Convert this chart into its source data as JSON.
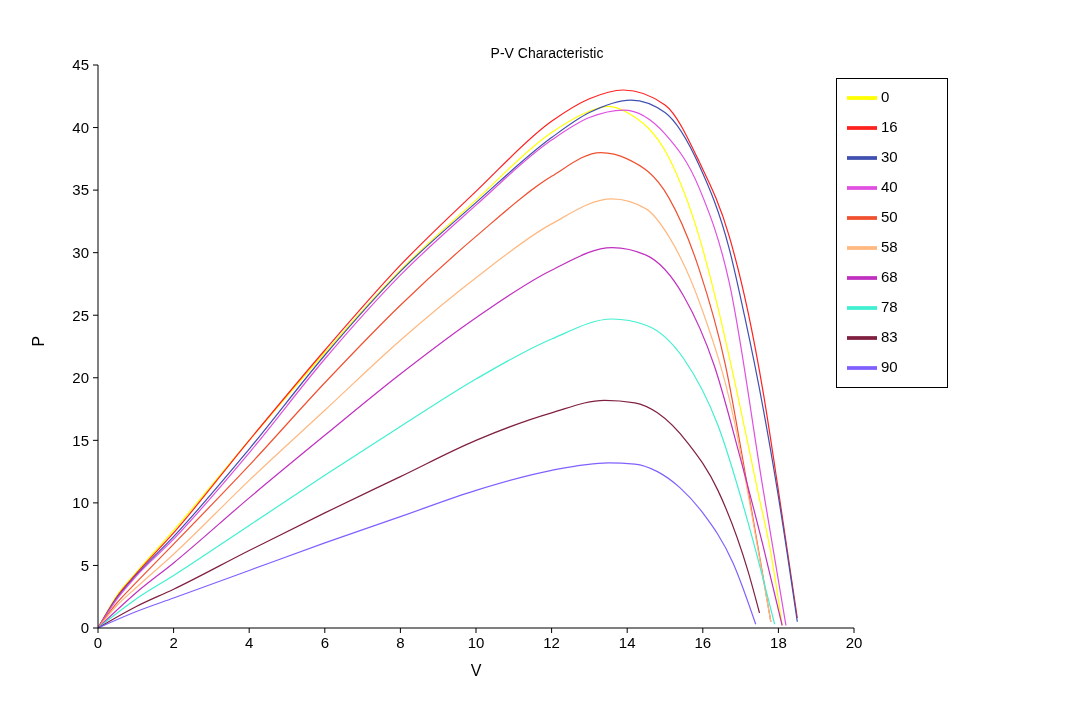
{
  "chart_data": {
    "type": "line",
    "title": "P-V Characteristic",
    "xlabel": "V",
    "ylabel": "P",
    "xlim": [
      0,
      20
    ],
    "xticks": [
      0,
      2,
      4,
      6,
      8,
      10,
      12,
      14,
      16,
      18,
      20
    ],
    "ylim": [
      0,
      45
    ],
    "yticks": [
      0,
      5,
      10,
      15,
      20,
      25,
      30,
      35,
      40,
      45
    ],
    "grid": false,
    "legend": "top right",
    "line_style": "solid",
    "series": [
      {
        "name": "0",
        "color": "#ffff00",
        "x": [
          0,
          0.5,
          1,
          2,
          4,
          6,
          8,
          10,
          12,
          13,
          13.5,
          14,
          15.1,
          15.9,
          16.4,
          17,
          17.45,
          17.8,
          18.1
        ],
        "values": [
          0,
          2.6,
          4.4,
          7.8,
          15,
          22,
          28.6,
          34.2,
          39.6,
          41.3,
          41.7,
          41.2,
          37.6,
          31.3,
          25.6,
          17.5,
          11,
          6,
          0.2
        ]
      },
      {
        "name": "16",
        "color": "#ff2020",
        "x": [
          0,
          0.5,
          1,
          2,
          4,
          6,
          8,
          10,
          12,
          13,
          13.9,
          15,
          15.9,
          16.7,
          17.2,
          17.6,
          18,
          18.5
        ],
        "values": [
          0,
          2.5,
          4.3,
          7.6,
          15,
          22.2,
          29,
          34.9,
          40.5,
          42.3,
          43,
          41.8,
          37.3,
          31.3,
          25.2,
          18.8,
          11,
          0.8
        ]
      },
      {
        "name": "30",
        "color": "#4050b0",
        "x": [
          0,
          0.5,
          1,
          2,
          4,
          6,
          8,
          10,
          12,
          13,
          14.1,
          15,
          15.9,
          16.7,
          17.1,
          17.6,
          18,
          18.5
        ],
        "values": [
          0,
          2.4,
          4.2,
          7.3,
          14.3,
          21.8,
          28.5,
          34,
          39.2,
          41.2,
          42.2,
          41.2,
          37,
          30.3,
          25,
          17.5,
          10.5,
          0.5
        ]
      },
      {
        "name": "40",
        "color": "#e050e0",
        "x": [
          0,
          0.5,
          1,
          2,
          4,
          6,
          8,
          10,
          12,
          13,
          13.9,
          15,
          15.9,
          16.7,
          17.6,
          18.2
        ],
        "values": [
          0,
          2.3,
          4.1,
          7.1,
          14,
          21.5,
          28.2,
          33.8,
          39,
          40.8,
          41.4,
          39.5,
          35.2,
          27.6,
          11,
          0.2
        ]
      },
      {
        "name": "50",
        "color": "#f05030",
        "x": [
          0,
          0.5,
          1,
          2,
          4,
          6,
          8,
          10,
          12,
          13.3,
          14,
          15.1,
          15.9,
          16.6,
          17.2,
          17.8
        ],
        "values": [
          0,
          2,
          3.6,
          6.7,
          13,
          19.6,
          25.8,
          31.3,
          36.1,
          38,
          37.5,
          34.4,
          28.7,
          21,
          11,
          0.5
        ]
      },
      {
        "name": "58",
        "color": "#ffb880",
        "x": [
          0,
          0.5,
          1,
          2,
          4,
          6,
          8,
          10,
          12,
          13.6,
          14.5,
          15.1,
          16,
          16.8,
          17.3,
          17.8
        ],
        "values": [
          0,
          1.8,
          3.2,
          5.9,
          11.8,
          17.4,
          23,
          28,
          32.3,
          34.3,
          33.5,
          31.3,
          25.3,
          17,
          9,
          0.5
        ]
      },
      {
        "name": "68",
        "color": "#c030c0",
        "x": [
          0,
          1,
          2,
          4,
          6,
          8,
          10,
          12,
          13.6,
          14.5,
          15.5,
          16.3,
          17,
          17.6,
          18.1
        ],
        "values": [
          0,
          2.8,
          5.2,
          10.4,
          15.4,
          20.3,
          24.8,
          28.6,
          30.4,
          29.8,
          26.5,
          21,
          13.5,
          6.5,
          0.2
        ]
      },
      {
        "name": "78",
        "color": "#40f0d0",
        "x": [
          0,
          1,
          2,
          4,
          6,
          8,
          10,
          12,
          13.6,
          14.5,
          15.5,
          16.4,
          17.2,
          17.9
        ],
        "values": [
          0,
          2.3,
          4.2,
          8.2,
          12.2,
          16.1,
          19.9,
          23.1,
          24.7,
          24.2,
          21.5,
          16.2,
          8.4,
          0.3
        ]
      },
      {
        "name": "83",
        "color": "#802040",
        "x": [
          0,
          1,
          2,
          4,
          6,
          8,
          10,
          12,
          13.4,
          14.2,
          14.8,
          15.6,
          16.4,
          17.2,
          17.5
        ],
        "values": [
          0,
          1.7,
          3.1,
          6.2,
          9.2,
          12.1,
          15,
          17.2,
          18.2,
          18,
          17.2,
          14.8,
          11,
          4.5,
          1.2
        ]
      },
      {
        "name": "90",
        "color": "#8060ff",
        "x": [
          0,
          1,
          2,
          4,
          6,
          8,
          10,
          12,
          13.5,
          14.2,
          14.8,
          15.4,
          16,
          16.8,
          17.4
        ],
        "values": [
          0,
          1.3,
          2.4,
          4.6,
          6.8,
          8.9,
          11,
          12.6,
          13.2,
          13.1,
          12.5,
          11.2,
          9.2,
          5.2,
          0.3
        ]
      }
    ]
  }
}
